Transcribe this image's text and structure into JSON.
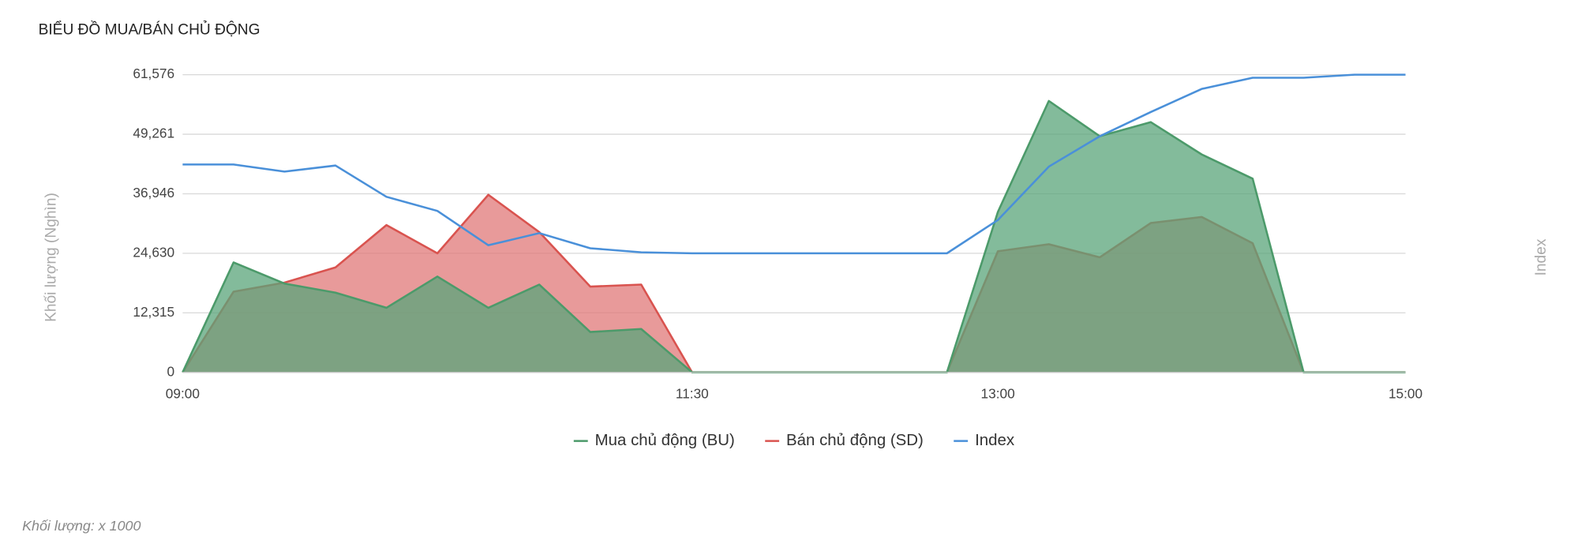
{
  "chart_data": {
    "type": "area",
    "title": "BIỂU ĐỒ MUA/BÁN CHỦ ĐỘNG",
    "y_label": "Khối lượng (Nghìn)",
    "y2_label": "Index",
    "note": "Khối lượng: x 1000",
    "categories": [
      "09:00",
      null,
      null,
      null,
      null,
      null,
      null,
      null,
      null,
      null,
      "11:30",
      null,
      null,
      null,
      null,
      null,
      "13:00",
      null,
      null,
      null,
      null,
      null,
      null,
      null,
      "15:00"
    ],
    "ylim": [
      0,
      61576
    ],
    "yticks": [
      0,
      {
        "value": 12315,
        "label": "12,315"
      },
      {
        "value": 24630,
        "label": "24,630"
      },
      {
        "value": 36946,
        "label": "36,946"
      },
      {
        "value": 49261,
        "label": "49,261"
      },
      {
        "value": 61576,
        "label": "61,576"
      }
    ],
    "grid": true,
    "series": [
      {
        "name": "Bán chủ động (SD)",
        "color": "#d9534f",
        "fill": "#e07878",
        "values": [
          0,
          16700,
          18570,
          21700,
          30470,
          24630,
          36730,
          29010,
          17740,
          18160,
          0,
          0,
          0,
          0,
          0,
          0,
          25040,
          26500,
          23790,
          30890,
          32140,
          26710,
          0,
          0,
          0
        ]
      },
      {
        "name": "Mua chủ động (BU)",
        "color": "#4c9a6a",
        "fill": "#5aa47a",
        "values": [
          0,
          22750,
          18370,
          16490,
          13360,
          19830,
          13360,
          18160,
          8350,
          8970,
          0,
          0,
          0,
          0,
          0,
          0,
          33180,
          56140,
          48840,
          51760,
          45080,
          40070,
          0,
          0,
          0
        ]
      },
      {
        "name": "Index",
        "color": "#4a90d9",
        "line": true,
        "values": [
          43000,
          43000,
          41530,
          42780,
          36310,
          33390,
          26300,
          28800,
          25670,
          24840,
          24630,
          24630,
          24630,
          24630,
          24630,
          24630,
          31510,
          42570,
          48840,
          53850,
          58640,
          60940,
          60940,
          61570,
          61570
        ]
      }
    ],
    "legend_order": [
      1,
      0,
      2
    ]
  }
}
